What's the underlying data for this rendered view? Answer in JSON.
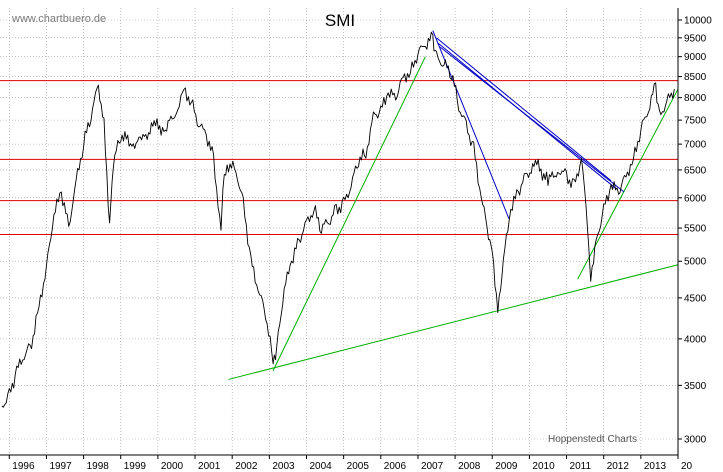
{
  "chart_data": {
    "type": "line",
    "title": "SMI",
    "source": "www.chartbuero.de",
    "credit": "Hoppenstedt Charts",
    "y_scale": "log",
    "ylim": [
      2800,
      10200
    ],
    "y_ticks": [
      3000,
      3500,
      4000,
      4500,
      5000,
      5500,
      6000,
      6500,
      7000,
      7500,
      8000,
      8500,
      9000,
      9500,
      10000
    ],
    "x_range": [
      1995.75,
      2014.0
    ],
    "x_ticks": [
      "1996",
      "1997",
      "1998",
      "1999",
      "2000",
      "2001",
      "2002",
      "2003",
      "2004",
      "2005",
      "2006",
      "2007",
      "2008",
      "2009",
      "2010",
      "2011",
      "2012",
      "2013",
      "20"
    ],
    "grid": true,
    "series": [
      {
        "color": "#000000",
        "x": [
          1995.8,
          1996.0,
          1996.2,
          1996.4,
          1996.6,
          1996.8,
          1997.0,
          1997.2,
          1997.4,
          1997.6,
          1997.8,
          1998.0,
          1998.2,
          1998.4,
          1998.55,
          1998.7,
          1998.8,
          1999.0,
          1999.3,
          1999.6,
          1999.9,
          2000.2,
          2000.5,
          2000.7,
          2000.9,
          2001.1,
          2001.3,
          2001.5,
          2001.7,
          2001.75,
          2001.9,
          2002.1,
          2002.3,
          2002.5,
          2002.7,
          2002.9,
          2003.1,
          2003.2,
          2003.4,
          2003.6,
          2003.8,
          2004.0,
          2004.2,
          2004.4,
          2004.6,
          2004.8,
          2005.0,
          2005.2,
          2005.4,
          2005.6,
          2005.8,
          2006.0,
          2006.2,
          2006.4,
          2006.6,
          2006.8,
          2007.0,
          2007.2,
          2007.4,
          2007.5,
          2007.7,
          2007.9,
          2008.1,
          2008.3,
          2008.5,
          2008.7,
          2008.9,
          2009.0,
          2009.15,
          2009.3,
          2009.5,
          2009.7,
          2009.9,
          2010.2,
          2010.5,
          2010.8,
          2011.0,
          2011.2,
          2011.4,
          2011.6,
          2011.65,
          2011.8,
          2012.0,
          2012.2,
          2012.4,
          2012.6,
          2012.8,
          2013.0,
          2013.2,
          2013.4,
          2013.5,
          2013.7,
          2013.9
        ],
        "y": [
          3300,
          3400,
          3650,
          3800,
          3950,
          4400,
          4900,
          5700,
          6100,
          5500,
          6300,
          7000,
          7600,
          8300,
          7400,
          5500,
          6600,
          7200,
          7000,
          7100,
          7400,
          7300,
          7700,
          8200,
          7900,
          7400,
          7200,
          6700,
          5400,
          6200,
          6600,
          6500,
          5900,
          5000,
          4600,
          4300,
          3750,
          3900,
          4600,
          5000,
          5300,
          5600,
          5800,
          5500,
          5600,
          5800,
          5900,
          6200,
          6700,
          6800,
          7600,
          7700,
          8100,
          8000,
          8500,
          8600,
          9100,
          9300,
          9500,
          9000,
          8800,
          8600,
          7800,
          7400,
          6900,
          6000,
          5400,
          5200,
          4300,
          5000,
          5800,
          6100,
          6400,
          6600,
          6300,
          6500,
          6400,
          6200,
          6700,
          5300,
          4800,
          5300,
          5800,
          6200,
          6100,
          6400,
          6700,
          7300,
          7700,
          8300,
          7600,
          7900,
          8200
        ]
      }
    ],
    "horizontal_levels": [
      8400,
      6700,
      5950,
      5400
    ],
    "trendlines": [
      {
        "color": "#00b000",
        "x": [
          2003.1,
          2007.2
        ],
        "y": [
          3650,
          9000
        ]
      },
      {
        "color": "#00b000",
        "x": [
          2001.9,
          2014.0
        ],
        "y": [
          3560,
          4950
        ]
      },
      {
        "color": "#00b000",
        "x": [
          2011.3,
          2014.0
        ],
        "y": [
          4750,
          8200
        ]
      },
      {
        "color": "#0000c8",
        "x": [
          2007.4,
          2009.45
        ],
        "y": [
          9700,
          5650
        ]
      },
      {
        "color": "#0000c8",
        "x": [
          2007.5,
          2012.2
        ],
        "y": [
          9500,
          6300
        ]
      },
      {
        "color": "#0000c8",
        "x": [
          2007.55,
          2012.35
        ],
        "y": [
          9350,
          6150
        ]
      },
      {
        "color": "#0000c8",
        "x": [
          2007.6,
          2012.55
        ],
        "y": [
          9250,
          6100
        ]
      }
    ]
  },
  "colors": {
    "price": "#000000",
    "resistance": "#dd0000",
    "support": "#00b000",
    "downtrend": "#0000c8",
    "grid": "#999999"
  }
}
